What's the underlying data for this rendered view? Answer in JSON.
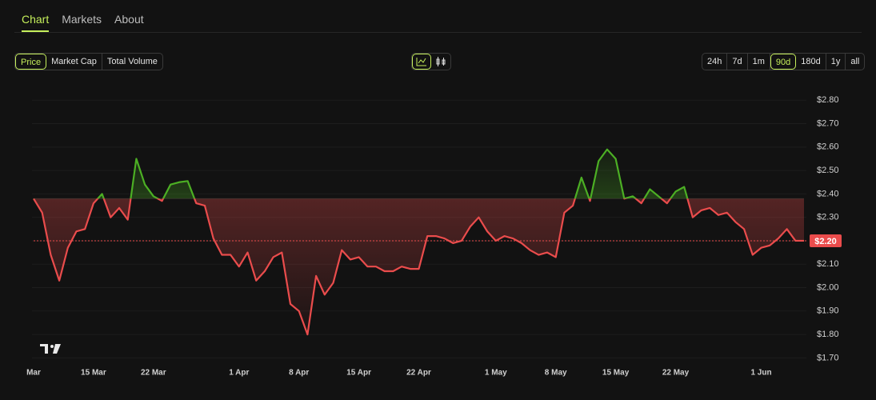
{
  "tabs": {
    "items": [
      "Chart",
      "Markets",
      "About"
    ],
    "active": 0
  },
  "metric_buttons": {
    "items": [
      "Price",
      "Market Cap",
      "Total Volume"
    ],
    "active": 0
  },
  "range_buttons": {
    "items": [
      "24h",
      "7d",
      "1m",
      "90d",
      "180d",
      "1y",
      "all"
    ],
    "active": 3
  },
  "chart_data": {
    "type": "baseline-line",
    "categories": [
      "Mar",
      null,
      null,
      null,
      null,
      null,
      null,
      "15 Mar",
      null,
      null,
      null,
      null,
      null,
      null,
      "22 Mar",
      null,
      null,
      null,
      null,
      null,
      null,
      null,
      null,
      null,
      "1 Apr",
      null,
      null,
      null,
      null,
      null,
      null,
      "8 Apr",
      null,
      null,
      null,
      null,
      null,
      null,
      "15 Apr",
      null,
      null,
      null,
      null,
      null,
      null,
      "22 Apr",
      null,
      null,
      null,
      null,
      null,
      null,
      null,
      null,
      "1 May",
      null,
      null,
      null,
      null,
      null,
      null,
      "8 May",
      null,
      null,
      null,
      null,
      null,
      null,
      "15 May",
      null,
      null,
      null,
      null,
      null,
      null,
      "22 May",
      null,
      null,
      null,
      null,
      null,
      null,
      null,
      null,
      null,
      "1 Jun",
      null,
      null,
      null,
      null,
      null
    ],
    "values": [
      2.38,
      2.32,
      2.14,
      2.03,
      2.17,
      2.24,
      2.25,
      2.36,
      2.4,
      2.3,
      2.34,
      2.29,
      2.55,
      2.44,
      2.39,
      2.37,
      2.44,
      2.45,
      2.455,
      2.36,
      2.35,
      2.21,
      2.14,
      2.14,
      2.09,
      2.15,
      2.03,
      2.07,
      2.13,
      2.15,
      1.93,
      1.9,
      1.8,
      2.05,
      1.97,
      2.02,
      2.16,
      2.12,
      2.13,
      2.09,
      2.09,
      2.07,
      2.07,
      2.09,
      2.08,
      2.08,
      2.22,
      2.22,
      2.21,
      2.19,
      2.2,
      2.26,
      2.3,
      2.24,
      2.2,
      2.22,
      2.21,
      2.19,
      2.16,
      2.14,
      2.15,
      2.13,
      2.32,
      2.35,
      2.47,
      2.37,
      2.54,
      2.59,
      2.55,
      2.38,
      2.39,
      2.36,
      2.42,
      2.39,
      2.36,
      2.41,
      2.43,
      2.3,
      2.33,
      2.34,
      2.31,
      2.32,
      2.28,
      2.25,
      2.14,
      2.17,
      2.18,
      2.21,
      2.25,
      2.2,
      2.2
    ],
    "up_color": "#4caf24",
    "down_color": "#ea4c4c",
    "ylim": [
      1.65,
      2.9
    ],
    "yticks": [
      {
        "value": 1.7,
        "label": "$1.70"
      },
      {
        "value": 1.8,
        "label": "$1.80"
      },
      {
        "value": 1.9,
        "label": "$1.90"
      },
      {
        "value": 2.0,
        "label": "$2.00"
      },
      {
        "value": 2.1,
        "label": "$2.10"
      },
      {
        "value": 2.2,
        "label": "$2.20"
      },
      {
        "value": 2.3,
        "label": "$2.30"
      },
      {
        "value": 2.4,
        "label": "$2.40"
      },
      {
        "value": 2.5,
        "label": "$2.50"
      },
      {
        "value": 2.6,
        "label": "$2.60"
      },
      {
        "value": 2.7,
        "label": "$2.70"
      },
      {
        "value": 2.8,
        "label": "$2.80"
      }
    ],
    "current_price": {
      "value": 2.2,
      "label": "$2.20"
    },
    "grid": true
  }
}
